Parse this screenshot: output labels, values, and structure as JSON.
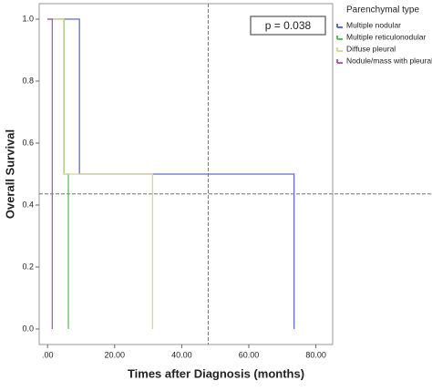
{
  "chart_data": {
    "type": "step",
    "x_label": "Times after Diagnosis (months)",
    "y_label": "Overall Survival",
    "legend_title": "Parenchymal type",
    "annotation": "p = 0.038",
    "xlim": [
      -2.5,
      85
    ],
    "ylim": [
      -0.05,
      1.05
    ],
    "xticks": [
      {
        "value": 0,
        "label": ".00"
      },
      {
        "value": 20,
        "label": "20.00"
      },
      {
        "value": 40,
        "label": "40.00"
      },
      {
        "value": 60,
        "label": "60.00"
      },
      {
        "value": 80,
        "label": "80.00"
      }
    ],
    "yticks": [
      {
        "value": 0,
        "label": "0.0"
      },
      0.2,
      0.4,
      0.6,
      0.8,
      {
        "value": 1,
        "label": "1.0"
      }
    ],
    "reference_x": 47.9,
    "reference_y": 0.436,
    "series": [
      {
        "name": "Multiple nodular",
        "color": "#5a6fc4",
        "x": [
          0,
          9.5,
          73.5
        ],
        "values": [
          1,
          0.5,
          0
        ]
      },
      {
        "name": "Multiple reticulonodular",
        "color": "#5cbf5c",
        "x": [
          0,
          4.9,
          6.2
        ],
        "values": [
          1,
          0.5,
          0
        ]
      },
      {
        "name": "Diffuse pleural",
        "color": "#d8d890",
        "x": [
          0,
          4.8,
          31.3
        ],
        "values": [
          1,
          0.5,
          0
        ]
      },
      {
        "name": "Nodule/mass with pleural",
        "color": "#b05ab0",
        "x": [
          0,
          1.4
        ],
        "values": [
          1,
          0
        ]
      }
    ]
  }
}
